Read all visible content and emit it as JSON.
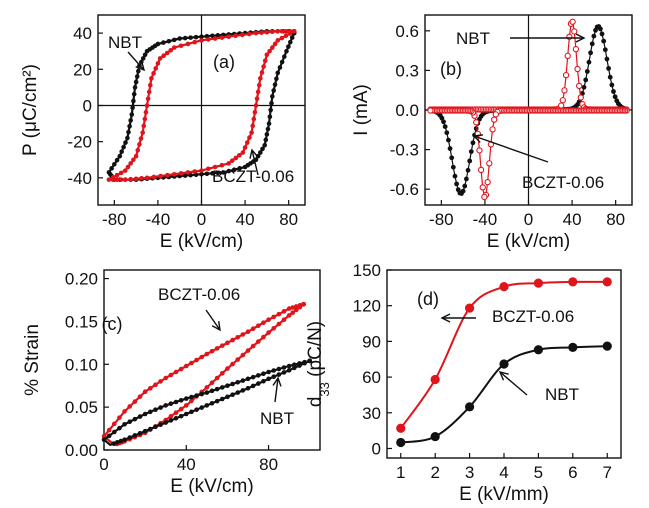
{
  "colors": {
    "nbt": "#111111",
    "bczt": "#e0141b"
  },
  "chart_data": [
    {
      "panel": "(a)",
      "type": "line",
      "title": "",
      "xlabel": "E (kV/cm)",
      "ylabel": "P (μC/cm²)",
      "xlim": [
        -95,
        95
      ],
      "ylim": [
        -55,
        50
      ],
      "xticks": [
        -80,
        -40,
        0,
        40,
        80
      ],
      "yticks": [
        -40,
        -20,
        0,
        20,
        40
      ],
      "annotations": [
        {
          "text": "NBT",
          "series": "NBT"
        },
        {
          "text": "BCZT-0.06",
          "series": "BCZT-0.06"
        }
      ],
      "series": [
        {
          "name": "NBT",
          "color": "#111111",
          "upper": [
            [
              -85,
              -37
            ],
            [
              -75,
              -28
            ],
            [
              -68,
              -18
            ],
            [
              -64,
              -5
            ],
            [
              -61,
              10
            ],
            [
              -57,
              22
            ],
            [
              -50,
              30
            ],
            [
              -40,
              34
            ],
            [
              -20,
              37
            ],
            [
              0,
              38
            ],
            [
              20,
              39
            ],
            [
              40,
              40
            ],
            [
              60,
              41
            ],
            [
              80,
              41
            ],
            [
              85,
              40
            ]
          ],
          "lower": [
            [
              85,
              40
            ],
            [
              78,
              30
            ],
            [
              70,
              18
            ],
            [
              65,
              5
            ],
            [
              62,
              -10
            ],
            [
              58,
              -22
            ],
            [
              50,
              -30
            ],
            [
              40,
              -34
            ],
            [
              20,
              -37
            ],
            [
              0,
              -38
            ],
            [
              -20,
              -39
            ],
            [
              -40,
              -40
            ],
            [
              -60,
              -41
            ],
            [
              -80,
              -41
            ],
            [
              -85,
              -37
            ]
          ]
        },
        {
          "name": "BCZT-0.06",
          "color": "#e0141b",
          "upper": [
            [
              -85,
              -41
            ],
            [
              -70,
              -36
            ],
            [
              -60,
              -28
            ],
            [
              -54,
              -15
            ],
            [
              -50,
              0
            ],
            [
              -46,
              15
            ],
            [
              -38,
              26
            ],
            [
              -25,
              32
            ],
            [
              0,
              36
            ],
            [
              25,
              38
            ],
            [
              50,
              40
            ],
            [
              70,
              41
            ],
            [
              85,
              41
            ]
          ],
          "lower": [
            [
              85,
              41
            ],
            [
              70,
              36
            ],
            [
              60,
              28
            ],
            [
              54,
              15
            ],
            [
              50,
              0
            ],
            [
              46,
              -15
            ],
            [
              38,
              -26
            ],
            [
              25,
              -32
            ],
            [
              0,
              -36
            ],
            [
              -25,
              -38
            ],
            [
              -50,
              -40
            ],
            [
              -70,
              -41
            ],
            [
              -85,
              -41
            ]
          ]
        }
      ]
    },
    {
      "panel": "(b)",
      "type": "line",
      "title": "",
      "xlabel": "E (kV/cm)",
      "ylabel": "I (mA)",
      "xlim": [
        -95,
        95
      ],
      "ylim": [
        -0.72,
        0.72
      ],
      "xticks": [
        -80,
        -40,
        0,
        40,
        80
      ],
      "yticks": [
        -0.6,
        -0.3,
        0.0,
        0.3,
        0.6
      ],
      "annotations": [
        {
          "text": "NBT",
          "series": "NBT"
        },
        {
          "text": "BCZT-0.06",
          "series": "BCZT-0.06"
        }
      ],
      "series": [
        {
          "name": "NBT",
          "color": "#111111",
          "peaks": [
            {
              "center": 64,
              "height": 0.63,
              "width": 8
            },
            {
              "center": -62,
              "height": -0.63,
              "width": 8
            }
          ]
        },
        {
          "name": "BCZT-0.06",
          "color": "#e0141b",
          "peaks": [
            {
              "center": 40,
              "height": 0.67,
              "width": 4
            },
            {
              "center": -40,
              "height": -0.66,
              "width": 4
            }
          ]
        }
      ]
    },
    {
      "panel": "(c)",
      "type": "line",
      "title": "",
      "xlabel": "E (kV/cm)",
      "ylabel": "% Strain",
      "xlim": [
        0,
        105
      ],
      "ylim": [
        0,
        0.21
      ],
      "xticks": [
        0,
        40,
        80
      ],
      "yticks": [
        0.0,
        0.05,
        0.1,
        0.15,
        0.2
      ],
      "annotations": [
        {
          "text": "BCZT-0.06",
          "series": "BCZT-0.06"
        },
        {
          "text": "NBT",
          "series": "NBT"
        }
      ],
      "series": [
        {
          "name": "BCZT-0.06",
          "color": "#e0141b",
          "upper": [
            [
              0,
              0.016
            ],
            [
              10,
              0.045
            ],
            [
              20,
              0.068
            ],
            [
              30,
              0.084
            ],
            [
              40,
              0.098
            ],
            [
              50,
              0.112
            ],
            [
              60,
              0.125
            ],
            [
              70,
              0.138
            ],
            [
              80,
              0.152
            ],
            [
              90,
              0.165
            ],
            [
              97,
              0.17
            ]
          ],
          "lower": [
            [
              97,
              0.17
            ],
            [
              90,
              0.157
            ],
            [
              80,
              0.137
            ],
            [
              70,
              0.116
            ],
            [
              60,
              0.095
            ],
            [
              50,
              0.073
            ],
            [
              40,
              0.052
            ],
            [
              30,
              0.035
            ],
            [
              20,
              0.02
            ],
            [
              10,
              0.01
            ],
            [
              5,
              0.006
            ]
          ]
        },
        {
          "name": "NBT",
          "color": "#111111",
          "upper": [
            [
              0,
              0.012
            ],
            [
              10,
              0.03
            ],
            [
              20,
              0.042
            ],
            [
              30,
              0.052
            ],
            [
              40,
              0.06
            ],
            [
              50,
              0.067
            ],
            [
              60,
              0.075
            ],
            [
              70,
              0.083
            ],
            [
              80,
              0.091
            ],
            [
              90,
              0.098
            ],
            [
              100,
              0.104
            ]
          ],
          "lower": [
            [
              100,
              0.104
            ],
            [
              90,
              0.093
            ],
            [
              80,
              0.083
            ],
            [
              70,
              0.072
            ],
            [
              60,
              0.062
            ],
            [
              50,
              0.052
            ],
            [
              40,
              0.042
            ],
            [
              30,
              0.032
            ],
            [
              20,
              0.022
            ],
            [
              10,
              0.012
            ],
            [
              3,
              0.006
            ]
          ]
        }
      ]
    },
    {
      "panel": "(d)",
      "type": "line",
      "title": "",
      "xlabel": "E (kV/mm)",
      "ylabel": "d33 (pC/N)",
      "xlim": [
        0.6,
        7.4
      ],
      "ylim": [
        -8,
        150
      ],
      "xticks": [
        1,
        2,
        3,
        4,
        5,
        6,
        7
      ],
      "yticks": [
        0,
        30,
        60,
        90,
        120,
        150
      ],
      "annotations": [
        {
          "text": "BCZT-0.06",
          "series": "BCZT-0.06"
        },
        {
          "text": "NBT",
          "series": "NBT"
        }
      ],
      "series": [
        {
          "name": "BCZT-0.06",
          "color": "#e0141b",
          "x": [
            1,
            2,
            3,
            4,
            5,
            6,
            7
          ],
          "values": [
            17,
            58,
            118,
            136,
            139,
            140,
            140
          ]
        },
        {
          "name": "NBT",
          "color": "#111111",
          "x": [
            1,
            2,
            3,
            4,
            5,
            6,
            7
          ],
          "values": [
            5,
            10,
            35,
            71,
            83,
            85,
            86
          ]
        }
      ]
    }
  ]
}
